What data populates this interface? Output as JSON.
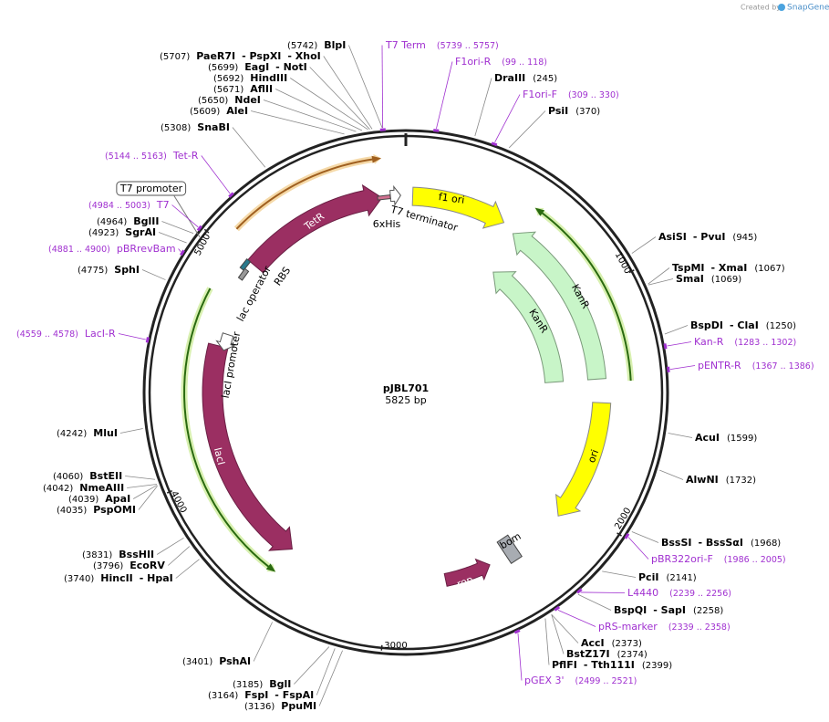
{
  "header": {
    "credit": "Created by",
    "brand": "SnapGene"
  },
  "map": {
    "name": "pJBL701",
    "size": "5825 bp"
  },
  "ticks": [
    "1000",
    "2000",
    "3000",
    "4000",
    "5000"
  ],
  "sites": [
    {
      "pos": "(5742)",
      "names": [
        "BlpI"
      ]
    },
    {
      "pos": "(5707)",
      "names": [
        "PaeR7I",
        "- PspXI",
        "- XhoI"
      ]
    },
    {
      "pos": "(5699)",
      "names": [
        "EagI",
        "- NotI"
      ]
    },
    {
      "pos": "(5692)",
      "names": [
        "HindIII"
      ]
    },
    {
      "pos": "(5671)",
      "names": [
        "AflII"
      ]
    },
    {
      "pos": "(5650)",
      "names": [
        "NdeI"
      ]
    },
    {
      "pos": "(5609)",
      "names": [
        "AleI"
      ]
    },
    {
      "pos": "(5308)",
      "names": [
        "SnaBI"
      ]
    },
    {
      "pos": "(4964)",
      "names": [
        "BglII"
      ]
    },
    {
      "pos": "(4923)",
      "names": [
        "SgrAI"
      ]
    },
    {
      "pos": "(4775)",
      "names": [
        "SphI"
      ]
    },
    {
      "pos": "(4242)",
      "names": [
        "MluI"
      ]
    },
    {
      "pos": "(4060)",
      "names": [
        "BstEII"
      ]
    },
    {
      "pos": "(4042)",
      "names": [
        "NmeAIII"
      ]
    },
    {
      "pos": "(4039)",
      "names": [
        "ApaI"
      ]
    },
    {
      "pos": "(4035)",
      "names": [
        "PspOMI"
      ]
    },
    {
      "pos": "(3831)",
      "names": [
        "BssHII"
      ]
    },
    {
      "pos": "(3796)",
      "names": [
        "EcoRV"
      ]
    },
    {
      "pos": "(3740)",
      "names": [
        "HincII",
        "- HpaI"
      ]
    },
    {
      "pos": "(3401)",
      "names": [
        "PshAI"
      ]
    },
    {
      "pos": "(3185)",
      "names": [
        "BglI"
      ]
    },
    {
      "pos": "(3164)",
      "names": [
        "FspI",
        "- FspAI"
      ]
    },
    {
      "pos": "(3136)",
      "names": [
        "PpuMI"
      ]
    },
    {
      "pos": "(245)",
      "names": [
        "DraIII"
      ]
    },
    {
      "pos": "(370)",
      "names": [
        "PsiI"
      ]
    },
    {
      "pos": "(945)",
      "names": [
        "AsiSI",
        "- PvuI"
      ]
    },
    {
      "pos": "(1067)",
      "names": [
        "TspMI",
        "- XmaI"
      ]
    },
    {
      "pos": "(1069)",
      "names": [
        "SmaI"
      ]
    },
    {
      "pos": "(1250)",
      "names": [
        "BspDI",
        "- ClaI"
      ]
    },
    {
      "pos": "(1599)",
      "names": [
        "AcuI"
      ]
    },
    {
      "pos": "(1732)",
      "names": [
        "AlwNI"
      ]
    },
    {
      "pos": "(1968)",
      "names": [
        "BssSI",
        "- BssSαI"
      ]
    },
    {
      "pos": "(2141)",
      "names": [
        "PciI"
      ]
    },
    {
      "pos": "(2258)",
      "names": [
        "BspQI",
        "- SapI"
      ]
    },
    {
      "pos": "(2373)",
      "names": [
        "AccI"
      ]
    },
    {
      "pos": "(2374)",
      "names": [
        "BstZ17I"
      ]
    },
    {
      "pos": "(2399)",
      "names": [
        "PflFI",
        "- Tth111I"
      ]
    }
  ],
  "primers": [
    {
      "name": "T7 Term",
      "range": "(5739 .. 5757)"
    },
    {
      "name": "F1ori-R",
      "range": "(99 .. 118)"
    },
    {
      "name": "F1ori-F",
      "range": "(309 .. 330)"
    },
    {
      "name": "Tet-R",
      "range": "(5144 .. 5163)"
    },
    {
      "name": "T7",
      "range": "(4984 .. 5003)"
    },
    {
      "name": "pBRrevBam",
      "range": "(4881 .. 4900)"
    },
    {
      "name": "LacI-R",
      "range": "(4559 .. 4578)"
    },
    {
      "name": "Kan-R",
      "range": "(1283 .. 1302)"
    },
    {
      "name": "pENTR-R",
      "range": "(1367 .. 1386)"
    },
    {
      "name": "pBR322ori-F",
      "range": "(1986 .. 2005)"
    },
    {
      "name": "L4440",
      "range": "(2239 .. 2256)"
    },
    {
      "name": "pRS-marker",
      "range": "(2339 .. 2358)"
    },
    {
      "name": "pGEX 3'",
      "range": "(2499 .. 2521)"
    }
  ],
  "features": [
    "TetR",
    "f1 ori",
    "KanR",
    "KanR",
    "ori",
    "lacI",
    "rop",
    "bom",
    "lac operator",
    "lacI promoter",
    "RBS",
    "6xHis",
    "T7 terminator",
    "T7 promoter"
  ]
}
